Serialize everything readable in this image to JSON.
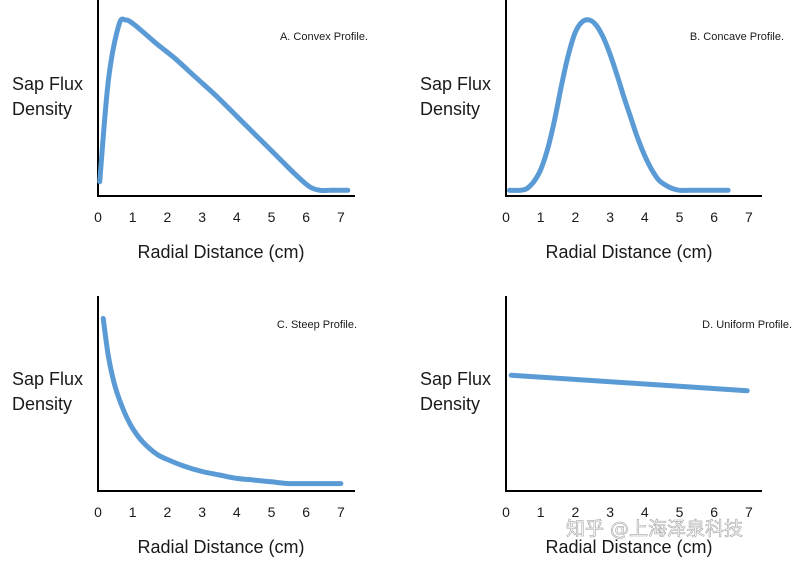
{
  "watermark": "知乎 @上海泽泉科技",
  "chart_data": [
    {
      "type": "line",
      "title": "A. Convex Profile.",
      "ylabel": [
        "Sap Flux",
        "Density"
      ],
      "xlabel": "Radial Distance (cm)",
      "xticks": [
        0,
        1,
        2,
        3,
        4,
        5,
        6,
        7
      ],
      "xlim": [
        0,
        7.3
      ],
      "ylim": [
        0,
        1
      ],
      "grid": false,
      "yticks": false,
      "color": "#5b9bd5",
      "series": [
        {
          "x": [
            0.05,
            0.3,
            0.6,
            0.8,
            1.0,
            1.3,
            1.7,
            2.2,
            2.8,
            3.4,
            4.0,
            4.6,
            5.2,
            5.7,
            6.1,
            6.4,
            6.7,
            7.0,
            7.2
          ],
          "y": [
            0.06,
            0.65,
            0.97,
            1.0,
            0.98,
            0.93,
            0.86,
            0.78,
            0.67,
            0.56,
            0.44,
            0.32,
            0.2,
            0.1,
            0.03,
            0.01,
            0.01,
            0.01,
            0.01
          ]
        }
      ]
    },
    {
      "type": "line",
      "title": "B. Concave Profile.",
      "ylabel": [
        "Sap Flux",
        "Density"
      ],
      "xlabel": "Radial Distance (cm)",
      "xticks": [
        0,
        1,
        2,
        3,
        4,
        5,
        6,
        7
      ],
      "xlim": [
        0,
        7.3
      ],
      "ylim": [
        0,
        1
      ],
      "grid": false,
      "yticks": false,
      "color": "#5b9bd5",
      "series": [
        {
          "x": [
            0.1,
            0.4,
            0.6,
            0.8,
            1.0,
            1.2,
            1.4,
            1.6,
            1.8,
            2.0,
            2.2,
            2.4,
            2.6,
            2.8,
            3.0,
            3.2,
            3.4,
            3.6,
            3.8,
            4.0,
            4.2,
            4.4,
            4.6,
            4.8,
            5.0,
            5.3,
            5.6,
            6.0,
            6.4
          ],
          "y": [
            0.01,
            0.01,
            0.02,
            0.06,
            0.13,
            0.25,
            0.42,
            0.62,
            0.8,
            0.93,
            0.99,
            1.0,
            0.97,
            0.9,
            0.8,
            0.68,
            0.55,
            0.43,
            0.31,
            0.21,
            0.13,
            0.07,
            0.04,
            0.02,
            0.01,
            0.01,
            0.01,
            0.01,
            0.01
          ]
        }
      ]
    },
    {
      "type": "line",
      "title": "C. Steep Profile.",
      "ylabel": [
        "Sap Flux",
        "Density"
      ],
      "xlabel": "Radial Distance (cm)",
      "xticks": [
        0,
        1,
        2,
        3,
        4,
        5,
        6,
        7
      ],
      "xlim": [
        0,
        7.3
      ],
      "ylim": [
        0,
        1
      ],
      "grid": false,
      "yticks": false,
      "color": "#5b9bd5",
      "series": [
        {
          "x": [
            0.15,
            0.3,
            0.5,
            0.75,
            1.0,
            1.3,
            1.7,
            2.0,
            2.5,
            3.0,
            3.5,
            4.0,
            4.5,
            5.0,
            5.5,
            6.0,
            6.5,
            7.0
          ],
          "y": [
            0.98,
            0.76,
            0.58,
            0.44,
            0.34,
            0.26,
            0.19,
            0.16,
            0.12,
            0.09,
            0.07,
            0.05,
            0.04,
            0.03,
            0.02,
            0.02,
            0.02,
            0.02
          ]
        }
      ]
    },
    {
      "type": "line",
      "title": "D. Uniform Profile.",
      "ylabel": [
        "Sap Flux",
        "Density"
      ],
      "xlabel": "Radial Distance (cm)",
      "xticks": [
        0,
        1,
        2,
        3,
        4,
        5,
        6,
        7
      ],
      "xlim": [
        0,
        7.3
      ],
      "ylim": [
        0,
        1
      ],
      "grid": false,
      "yticks": false,
      "color": "#5b9bd5",
      "series": [
        {
          "x": [
            0.15,
            6.95
          ],
          "y": [
            0.65,
            0.56
          ]
        }
      ]
    }
  ]
}
